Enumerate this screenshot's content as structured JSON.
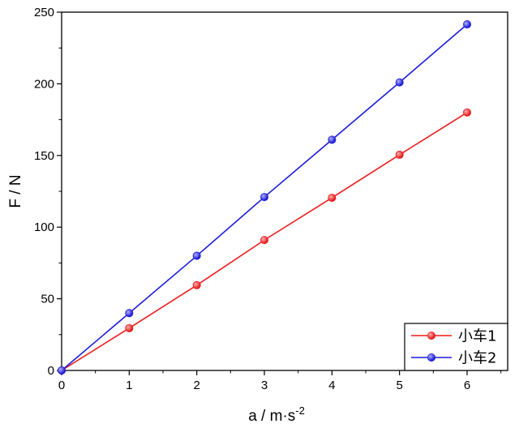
{
  "chart_data": {
    "type": "line",
    "xlabel": "a / m·s",
    "xlabel_sup": "-2",
    "ylabel": "F / N",
    "xlim": [
      0,
      6.6
    ],
    "ylim": [
      0,
      250
    ],
    "xticks": [
      "0",
      "1",
      "2",
      "3",
      "4",
      "5",
      "6"
    ],
    "yticks": [
      "0",
      "50",
      "100",
      "150",
      "200",
      "250"
    ],
    "grid": false,
    "legend_position": "bottom-right",
    "series": [
      {
        "name": "小车1",
        "color": "#ee1c1c",
        "x": [
          0,
          1,
          2,
          3,
          4,
          5,
          6
        ],
        "y": [
          0,
          29.5,
          59.5,
          91,
          120.5,
          150.5,
          180
        ]
      },
      {
        "name": "小车2",
        "color": "#1c1cdc",
        "x": [
          0,
          1,
          2,
          3,
          4,
          5,
          6
        ],
        "y": [
          0,
          40,
          80,
          121,
          161,
          201,
          241.5
        ]
      }
    ]
  }
}
